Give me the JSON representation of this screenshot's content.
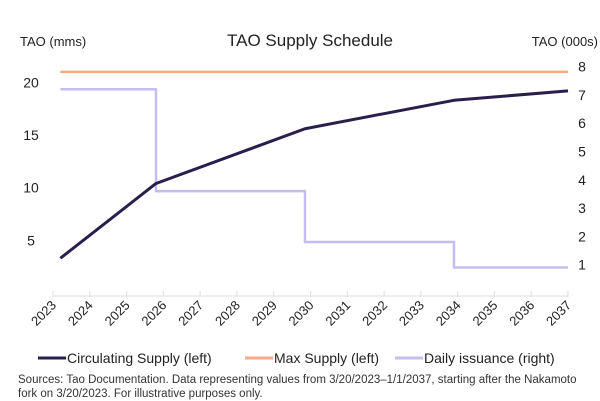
{
  "chart_data": {
    "type": "line",
    "title": "TAO Supply Schedule",
    "ylabel_left": "TAO (mms)",
    "ylabel_right": "TAO (000s)",
    "x_ticks": [
      "2023",
      "2024",
      "2025",
      "2026",
      "2027",
      "2028",
      "2029",
      "2030",
      "2031",
      "2032",
      "2033",
      "2034",
      "2035",
      "2036",
      "2037"
    ],
    "xlim": [
      2023,
      2037
    ],
    "ylim_left": [
      0,
      22
    ],
    "ylim_right": [
      0,
      8
    ],
    "y_ticks_left": [
      "5",
      "10",
      "15",
      "20"
    ],
    "y_ticks_right": [
      "1",
      "2",
      "3",
      "4",
      "5",
      "6",
      "7",
      "8"
    ],
    "grid": false,
    "legend_position": "bottom",
    "series": [
      {
        "name": "Circulating Supply (left)",
        "axis": "left",
        "color": "#2a1f4a",
        "step": false,
        "x": [
          2023.2,
          2025.8,
          2029.85,
          2033.9,
          2037
        ],
        "y": [
          3.3,
          10.4,
          15.6,
          18.3,
          19.2
        ]
      },
      {
        "name": "Max Supply (left)",
        "axis": "left",
        "color": "#f7a98a",
        "step": false,
        "x": [
          2023.2,
          2037
        ],
        "y": [
          21,
          21
        ]
      },
      {
        "name": "Daily issuance (right)",
        "axis": "right",
        "color": "#c3bdf0",
        "step": true,
        "x": [
          2023.2,
          2025.8,
          2029.85,
          2033.9,
          2037
        ],
        "y": [
          7.2,
          3.6,
          1.8,
          0.9,
          0.9
        ]
      }
    ]
  },
  "footnote": "Sources: Tao Documentation. Data representing values from 3/20/2023–1/1/2037, starting after the Nakamoto fork on 3/20/2023. For illustrative purposes only."
}
